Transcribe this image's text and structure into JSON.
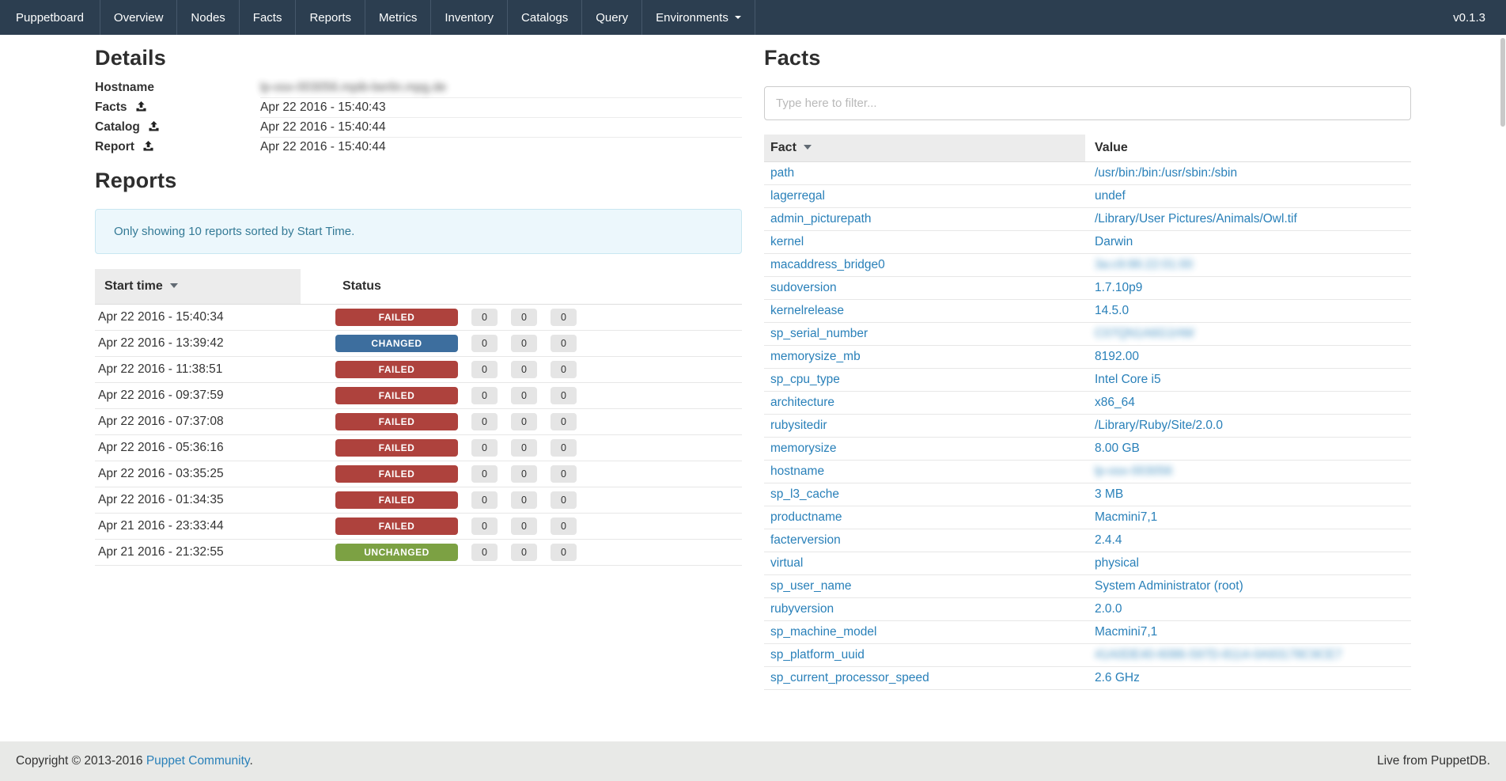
{
  "navbar": {
    "brand": "Puppetboard",
    "items": [
      "Overview",
      "Nodes",
      "Facts",
      "Reports",
      "Metrics",
      "Inventory",
      "Catalogs",
      "Query"
    ],
    "environments_label": "Environments",
    "version": "v0.1.3"
  },
  "details": {
    "title": "Details",
    "rows": [
      {
        "label": "Hostname",
        "icon": null,
        "value": "lp-osx-003056.mpib-berlin.mpg.de",
        "blurred": true
      },
      {
        "label": "Facts",
        "icon": "upload-icon",
        "value": "Apr 22 2016 - 15:40:43",
        "blurred": false
      },
      {
        "label": "Catalog",
        "icon": "upload-icon",
        "value": "Apr 22 2016 - 15:40:44",
        "blurred": false
      },
      {
        "label": "Report",
        "icon": "upload-icon",
        "value": "Apr 22 2016 - 15:40:44",
        "blurred": false
      }
    ]
  },
  "reports": {
    "title": "Reports",
    "alert": "Only showing 10 reports sorted by Start Time.",
    "columns": [
      "Start time",
      "Status"
    ],
    "rows": [
      {
        "start_time": "Apr 22 2016 - 15:40:34",
        "status": "FAILED",
        "counts": [
          "0",
          "0",
          "0"
        ]
      },
      {
        "start_time": "Apr 22 2016 - 13:39:42",
        "status": "CHANGED",
        "counts": [
          "0",
          "0",
          "0"
        ]
      },
      {
        "start_time": "Apr 22 2016 - 11:38:51",
        "status": "FAILED",
        "counts": [
          "0",
          "0",
          "0"
        ]
      },
      {
        "start_time": "Apr 22 2016 - 09:37:59",
        "status": "FAILED",
        "counts": [
          "0",
          "0",
          "0"
        ]
      },
      {
        "start_time": "Apr 22 2016 - 07:37:08",
        "status": "FAILED",
        "counts": [
          "0",
          "0",
          "0"
        ]
      },
      {
        "start_time": "Apr 22 2016 - 05:36:16",
        "status": "FAILED",
        "counts": [
          "0",
          "0",
          "0"
        ]
      },
      {
        "start_time": "Apr 22 2016 - 03:35:25",
        "status": "FAILED",
        "counts": [
          "0",
          "0",
          "0"
        ]
      },
      {
        "start_time": "Apr 22 2016 - 01:34:35",
        "status": "FAILED",
        "counts": [
          "0",
          "0",
          "0"
        ]
      },
      {
        "start_time": "Apr 21 2016 - 23:33:44",
        "status": "FAILED",
        "counts": [
          "0",
          "0",
          "0"
        ]
      },
      {
        "start_time": "Apr 21 2016 - 21:32:55",
        "status": "UNCHANGED",
        "counts": [
          "0",
          "0",
          "0"
        ]
      }
    ]
  },
  "facts": {
    "title": "Facts",
    "filter_placeholder": "Type here to filter...",
    "columns": [
      "Fact",
      "Value"
    ],
    "rows": [
      {
        "fact": "path",
        "value": "/usr/bin:/bin:/usr/sbin:/sbin",
        "blurred": false
      },
      {
        "fact": "lagerregal",
        "value": "undef",
        "blurred": false
      },
      {
        "fact": "admin_picturepath",
        "value": "/Library/User Pictures/Animals/Owl.tif",
        "blurred": false
      },
      {
        "fact": "kernel",
        "value": "Darwin",
        "blurred": false
      },
      {
        "fact": "macaddress_bridge0",
        "value": "3a:c9:86:22:01:00",
        "blurred": true
      },
      {
        "fact": "sudoversion",
        "value": "1.7.10p9",
        "blurred": false
      },
      {
        "fact": "kernelrelease",
        "value": "14.5.0",
        "blurred": false
      },
      {
        "fact": "sp_serial_number",
        "value": "C07QN1A6G1HW",
        "blurred": true
      },
      {
        "fact": "memorysize_mb",
        "value": "8192.00",
        "blurred": false
      },
      {
        "fact": "sp_cpu_type",
        "value": "Intel Core i5",
        "blurred": false
      },
      {
        "fact": "architecture",
        "value": "x86_64",
        "blurred": false
      },
      {
        "fact": "rubysitedir",
        "value": "/Library/Ruby/Site/2.0.0",
        "blurred": false
      },
      {
        "fact": "memorysize",
        "value": "8.00 GB",
        "blurred": false
      },
      {
        "fact": "hostname",
        "value": "lp-osx-003056",
        "blurred": true
      },
      {
        "fact": "sp_l3_cache",
        "value": "3 MB",
        "blurred": false
      },
      {
        "fact": "productname",
        "value": "Macmini7,1",
        "blurred": false
      },
      {
        "fact": "facterversion",
        "value": "2.4.4",
        "blurred": false
      },
      {
        "fact": "virtual",
        "value": "physical",
        "blurred": false
      },
      {
        "fact": "sp_user_name",
        "value": "System Administrator (root)",
        "blurred": false
      },
      {
        "fact": "rubyversion",
        "value": "2.0.0",
        "blurred": false
      },
      {
        "fact": "sp_machine_model",
        "value": "Macmini7,1",
        "blurred": false
      },
      {
        "fact": "sp_platform_uuid",
        "value": "41A0DE40-6086-597D-8114-0A93178C9CE7",
        "blurred": true
      },
      {
        "fact": "sp_current_processor_speed",
        "value": "2.6 GHz",
        "blurred": false
      }
    ]
  },
  "footer": {
    "copyright_prefix": "Copyright © 2013-2016 ",
    "copyright_link": "Puppet Community",
    "copyright_suffix": ".",
    "right": "Live from PuppetDB."
  },
  "colors": {
    "navbar": "#2c3e50",
    "link": "#2980b9",
    "failed": "#ae423d",
    "changed": "#3d6e9e",
    "unchanged": "#7ca143",
    "count_badge": "#e5e5e5",
    "alert_bg": "#ecf7fc",
    "alert_text": "#347a96"
  }
}
